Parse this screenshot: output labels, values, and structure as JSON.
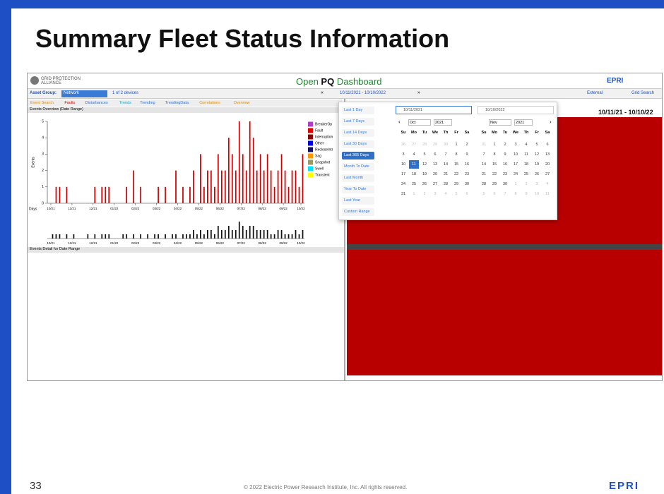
{
  "slide": {
    "title": "Summary Fleet Status Information",
    "page_number": "33",
    "copyright": "© 2022 Electric Power Research Institute, Inc. All rights reserved.",
    "logo": "EPRI"
  },
  "dashboard": {
    "brand": "GRID PROTECTION ALLIANCE",
    "app_title_pre": "Open ",
    "app_title_bold": "PQ",
    "app_title_post": " Dashboard",
    "epri": "EPRI",
    "asset_group_label": "Asset Group:",
    "asset_group": "Network",
    "device_count": "1 of 2 devices",
    "date_range": "10/11/2021 - 10/10/2022",
    "external": "External",
    "search": "Grid Search",
    "tabs": [
      {
        "label": "Event Search",
        "color": "#e08a00"
      },
      {
        "label": "Faults",
        "color": "#d00000"
      },
      {
        "label": "Disturbances",
        "color": "#2a6fd6"
      },
      {
        "label": "Trends",
        "color": "#10a6c8"
      },
      {
        "label": "Trending",
        "color": "#2a6fd6"
      },
      {
        "label": "TrendingData",
        "color": "#2a6fd6"
      },
      {
        "label": "Correlations",
        "color": "#e08a00"
      },
      {
        "label": "Overview",
        "color": "#e08a00"
      }
    ],
    "overview_title": "Events Overview (Date Range)",
    "detail_title": "Events Detail for Date Range",
    "range_label": "10/11/21 - 10/10/22"
  },
  "chart_data": {
    "type": "bar",
    "y_label": "Events",
    "overview_label": "Days",
    "color": "#d40000",
    "overview_color": "#111111",
    "values": [
      0,
      0,
      1,
      1,
      0,
      1,
      0,
      0,
      0,
      0,
      0,
      0,
      0,
      1,
      0,
      1,
      1,
      1,
      0,
      0,
      0,
      0,
      1,
      0,
      2,
      0,
      1,
      0,
      0,
      0,
      0,
      1,
      0,
      1,
      0,
      0,
      2,
      0,
      1,
      0,
      1,
      2,
      0,
      3,
      1,
      2,
      2,
      1,
      3,
      2,
      2,
      4,
      3,
      2,
      5,
      3,
      2,
      5,
      4,
      2,
      3,
      2,
      3,
      2,
      1,
      2,
      3,
      2,
      1,
      2,
      2,
      1,
      3
    ],
    "overview_values": [
      0,
      1,
      1,
      1,
      0,
      1,
      0,
      1,
      0,
      0,
      0,
      1,
      0,
      1,
      0,
      1,
      1,
      1,
      0,
      0,
      0,
      1,
      1,
      0,
      1,
      0,
      1,
      0,
      1,
      0,
      1,
      1,
      0,
      1,
      0,
      1,
      1,
      0,
      1,
      1,
      1,
      2,
      1,
      2,
      1,
      2,
      2,
      1,
      3,
      2,
      2,
      3,
      2,
      2,
      4,
      3,
      2,
      3,
      3,
      2,
      2,
      2,
      2,
      1,
      1,
      2,
      2,
      1,
      1,
      1,
      2,
      1,
      2
    ],
    "xlim": [
      0,
      73
    ],
    "ylim": [
      0,
      5
    ],
    "yticks": [
      0,
      1,
      2,
      3,
      4,
      5
    ],
    "xticks": [
      {
        "value": 1,
        "label": "10/21"
      },
      {
        "value": 7,
        "label": "11/21"
      },
      {
        "value": 13,
        "label": "12/21"
      },
      {
        "value": 19,
        "label": "01/22"
      },
      {
        "value": 25,
        "label": "02/22"
      },
      {
        "value": 31,
        "label": "03/22"
      },
      {
        "value": 37,
        "label": "04/22"
      },
      {
        "value": 43,
        "label": "05/22"
      },
      {
        "value": 49,
        "label": "06/22"
      },
      {
        "value": 55,
        "label": "07/22"
      },
      {
        "value": 61,
        "label": "08/22"
      },
      {
        "value": 67,
        "label": "09/22"
      },
      {
        "value": 72,
        "label": "10/22"
      }
    ],
    "legend": [
      {
        "name": "BreakerOp",
        "color": "#b03cc8"
      },
      {
        "name": "Fault",
        "color": "#e00000"
      },
      {
        "name": "Interruption",
        "color": "#8b0000"
      },
      {
        "name": "Other",
        "color": "#0000e0"
      },
      {
        "name": "RecloseIntr",
        "color": "#101060"
      },
      {
        "name": "Sag",
        "color": "#ff9900"
      },
      {
        "name": "Snapshot",
        "color": "#999966"
      },
      {
        "name": "Swell",
        "color": "#00e5ff"
      },
      {
        "name": "Transient",
        "color": "#ffff00"
      }
    ]
  },
  "datepicker": {
    "presets": [
      {
        "label": "Last 1 Day"
      },
      {
        "label": "Last 7 Days"
      },
      {
        "label": "Last 14 Days"
      },
      {
        "label": "Last 30 Days"
      },
      {
        "label": "Last 365 Days",
        "active": true
      },
      {
        "label": "Month To Date"
      },
      {
        "label": "Last Month"
      },
      {
        "label": "Year To Date"
      },
      {
        "label": "Last Year"
      },
      {
        "label": "Custom Range"
      }
    ],
    "start": "10/11/2021",
    "end": "10/10/2022",
    "weekdays": [
      "Su",
      "Mo",
      "Tu",
      "We",
      "Th",
      "Fr",
      "Sa"
    ],
    "calendars": [
      {
        "month": "Oct",
        "year": "2021",
        "selected": 11,
        "days": [
          [
            26,
            27,
            28,
            29,
            30,
            1,
            2
          ],
          [
            3,
            4,
            5,
            6,
            7,
            8,
            9
          ],
          [
            10,
            11,
            12,
            13,
            14,
            15,
            16
          ],
          [
            17,
            18,
            19,
            20,
            21,
            22,
            23
          ],
          [
            24,
            25,
            26,
            27,
            28,
            29,
            30
          ],
          [
            31,
            1,
            2,
            3,
            4,
            5,
            6
          ]
        ]
      },
      {
        "month": "Nov",
        "year": "2021",
        "days": [
          [
            31,
            1,
            2,
            3,
            4,
            5,
            6
          ],
          [
            7,
            8,
            9,
            10,
            11,
            12,
            13
          ],
          [
            14,
            15,
            16,
            17,
            18,
            19,
            20
          ],
          [
            21,
            22,
            23,
            24,
            25,
            26,
            27
          ],
          [
            28,
            29,
            30,
            1,
            2,
            3,
            4
          ],
          [
            5,
            6,
            7,
            8,
            9,
            10,
            11
          ]
        ]
      }
    ]
  }
}
